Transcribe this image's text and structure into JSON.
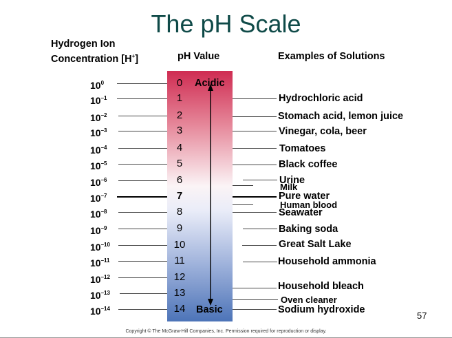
{
  "title": "The pH Scale",
  "headers": {
    "concentration_line1": "Hydrogen Ion",
    "concentration_line2": "Concentration [H",
    "concentration_sup": "+",
    "concentration_end": "]",
    "ph_value": "pH Value",
    "examples": "Examples of Solutions"
  },
  "scale": [
    {
      "base": "10",
      "exp": "0",
      "ph": "0"
    },
    {
      "base": "10",
      "exp": "–1",
      "ph": "1"
    },
    {
      "base": "10",
      "exp": "–2",
      "ph": "2"
    },
    {
      "base": "10",
      "exp": "–3",
      "ph": "3"
    },
    {
      "base": "10",
      "exp": "–4",
      "ph": "4"
    },
    {
      "base": "10",
      "exp": "–5",
      "ph": "5"
    },
    {
      "base": "10",
      "exp": "–6",
      "ph": "6"
    },
    {
      "base": "10",
      "exp": "–7",
      "ph": "7"
    },
    {
      "base": "10",
      "exp": "–8",
      "ph": "8"
    },
    {
      "base": "10",
      "exp": "–9",
      "ph": "9"
    },
    {
      "base": "10",
      "exp": "–10",
      "ph": "10"
    },
    {
      "base": "10",
      "exp": "–11",
      "ph": "11"
    },
    {
      "base": "10",
      "exp": "–12",
      "ph": "12"
    },
    {
      "base": "10",
      "exp": "–13",
      "ph": "13"
    },
    {
      "base": "10",
      "exp": "–14",
      "ph": "14"
    }
  ],
  "labels": {
    "acidic": "Acidic",
    "basic": "Basic"
  },
  "examples": [
    "Hydrochloric acid",
    "Stomach acid, lemon juice",
    "Vinegar, cola, beer",
    "Tomatoes",
    "Black coffee",
    "Urine",
    "Milk",
    "Pure water",
    "Human blood",
    "Seawater",
    "Baking soda",
    "Great Salt Lake",
    "Household ammonia",
    "Household bleach",
    "Oven cleaner",
    "Sodium hydroxide"
  ],
  "page_number": "57",
  "copyright": "Copyright © The McGraw-Hill Companies, Inc. Permission required for reproduction or display.",
  "colors": {
    "title": "#0f4a48",
    "acid": "#cf2c52",
    "neutral": "#fbf4f6",
    "base": "#4d74b8"
  }
}
